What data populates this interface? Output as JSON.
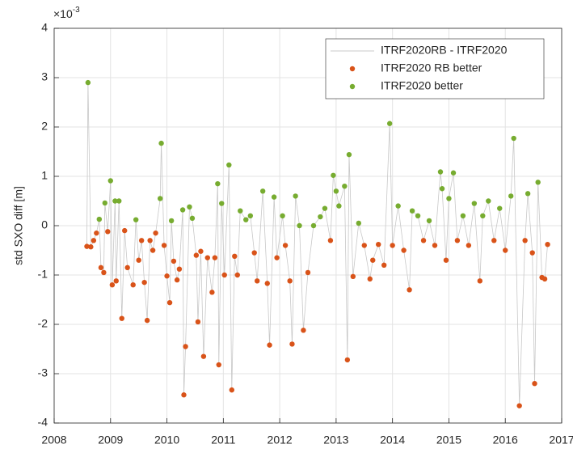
{
  "chart_data": {
    "type": "line-scatter",
    "ylabel": "std SXO diff [m]",
    "y_multiplier_base": "×10",
    "y_multiplier_exponent": "-3",
    "xlim": [
      2008,
      2017
    ],
    "xticks": [
      2008,
      2009,
      2010,
      2011,
      2012,
      2013,
      2014,
      2015,
      2016,
      2017
    ],
    "ylim": [
      -4,
      4
    ],
    "yticks": [
      -4,
      -3,
      -2,
      -1,
      0,
      1,
      2,
      3,
      4
    ],
    "grid": true,
    "legend": "upper right",
    "x": [
      2008.58,
      2008.6,
      2008.65,
      2008.7,
      2008.75,
      2008.8,
      2008.83,
      2008.88,
      2008.9,
      2008.95,
      2009.0,
      2009.03,
      2009.08,
      2009.1,
      2009.15,
      2009.2,
      2009.25,
      2009.3,
      2009.4,
      2009.45,
      2009.5,
      2009.55,
      2009.6,
      2009.65,
      2009.7,
      2009.75,
      2009.8,
      2009.88,
      2009.9,
      2009.95,
      2010.0,
      2010.05,
      2010.08,
      2010.12,
      2010.18,
      2010.22,
      2010.28,
      2010.3,
      2010.33,
      2010.4,
      2010.45,
      2010.52,
      2010.55,
      2010.6,
      2010.65,
      2010.72,
      2010.8,
      2010.85,
      2010.9,
      2010.92,
      2010.97,
      2011.02,
      2011.1,
      2011.15,
      2011.2,
      2011.25,
      2011.3,
      2011.4,
      2011.48,
      2011.55,
      2011.6,
      2011.7,
      2011.78,
      2011.82,
      2011.9,
      2011.95,
      2012.05,
      2012.1,
      2012.18,
      2012.22,
      2012.28,
      2012.35,
      2012.42,
      2012.5,
      2012.6,
      2012.72,
      2012.8,
      2012.9,
      2012.95,
      2013.0,
      2013.05,
      2013.15,
      2013.2,
      2013.23,
      2013.3,
      2013.4,
      2013.5,
      2013.6,
      2013.65,
      2013.75,
      2013.85,
      2013.95,
      2014.0,
      2014.1,
      2014.2,
      2014.3,
      2014.35,
      2014.45,
      2014.55,
      2014.65,
      2014.75,
      2014.85,
      2014.88,
      2014.95,
      2015.0,
      2015.08,
      2015.15,
      2015.25,
      2015.35,
      2015.45,
      2015.55,
      2015.6,
      2015.7,
      2015.8,
      2015.9,
      2016.0,
      2016.1,
      2016.15,
      2016.25,
      2016.35,
      2016.4,
      2016.48,
      2016.52,
      2016.58,
      2016.65,
      2016.7,
      2016.75
    ],
    "values": [
      -0.42,
      2.9,
      -0.43,
      -0.3,
      -0.15,
      0.13,
      -0.85,
      -0.95,
      0.46,
      -0.12,
      0.91,
      -1.2,
      0.5,
      -1.12,
      0.5,
      -1.88,
      -0.1,
      -0.85,
      -1.2,
      0.12,
      -0.7,
      -0.3,
      -1.15,
      -1.92,
      -0.3,
      -0.5,
      -0.15,
      0.55,
      1.67,
      -0.4,
      -1.02,
      -1.56,
      0.1,
      -0.72,
      -1.1,
      -0.88,
      0.32,
      -3.43,
      -2.45,
      0.38,
      0.15,
      -0.6,
      -1.95,
      -0.52,
      -2.65,
      -0.65,
      -1.35,
      -0.65,
      0.85,
      -2.82,
      0.45,
      -1.0,
      1.23,
      -3.33,
      -0.62,
      -1.0,
      0.3,
      0.12,
      0.2,
      -0.55,
      -1.12,
      0.7,
      -1.17,
      -2.42,
      0.58,
      -0.65,
      0.2,
      -0.4,
      -1.12,
      -2.4,
      0.6,
      0.0,
      -2.12,
      -0.95,
      0.0,
      0.18,
      0.35,
      -0.3,
      1.02,
      0.7,
      0.4,
      0.8,
      -2.72,
      1.44,
      -1.03,
      0.05,
      -0.4,
      -1.08,
      -0.7,
      -0.38,
      -0.8,
      2.07,
      -0.4,
      0.4,
      -0.5,
      -1.3,
      0.3,
      0.2,
      -0.3,
      0.1,
      -0.4,
      1.09,
      0.75,
      -0.7,
      0.55,
      1.07,
      -0.3,
      0.2,
      -0.4,
      0.45,
      -1.12,
      0.2,
      0.5,
      -0.3,
      0.35,
      -0.5,
      0.6,
      1.77,
      -3.65,
      -0.3,
      0.65,
      -0.55,
      -3.2,
      0.88,
      -1.05,
      -1.08,
      -0.38
    ],
    "series": [
      {
        "name": "ITRF2020RB - ITRF2020",
        "color": "#c8c8c8"
      },
      {
        "name": "ITRF2020 RB better",
        "color": "#d95319"
      },
      {
        "name": "ITRF2020 better",
        "color": "#77ac30"
      }
    ]
  }
}
